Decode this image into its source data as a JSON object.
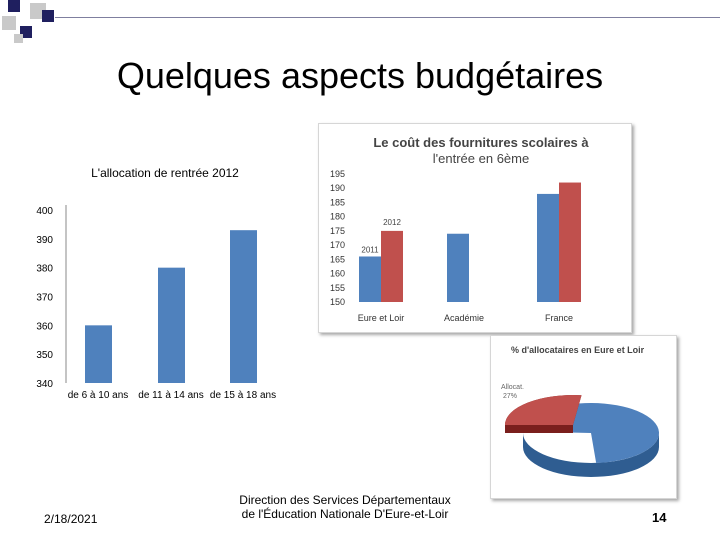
{
  "slide": {
    "title": "Quelques aspects budgétaires",
    "footer_date": "2/18/2021",
    "footer_center_line1": "Direction des Services Départementaux",
    "footer_center_line2": "de l'Éducation Nationale D'Eure-et-Loir",
    "page_number": "14"
  },
  "colors": {
    "bar_blue": "#4f81bd",
    "bar_red": "#c0504d",
    "deco_navy": "#1f1f5f",
    "deco_gray": "#c9c9c9"
  },
  "chart_data": [
    {
      "type": "bar",
      "title": "L'allocation de rentrée 2012",
      "categories": [
        "de 6 à 10 ans",
        "de 11 à 14 ans",
        "de 15 à 18 ans"
      ],
      "values": [
        360,
        380,
        393
      ],
      "ylim": [
        340,
        400
      ],
      "yticks": [
        "340",
        "350",
        "360",
        "370",
        "380",
        "390",
        "400"
      ],
      "grid": false,
      "legend": "none"
    },
    {
      "type": "bar",
      "title_line1": "Le coût des fournitures scolaires à",
      "title_line2": "l'entrée en 6ème",
      "categories": [
        "Eure et Loir",
        "Académie",
        "France"
      ],
      "series": [
        {
          "name": "2011",
          "values": [
            166,
            174,
            188
          ]
        },
        {
          "name": "2012",
          "values": [
            175,
            null,
            192
          ]
        }
      ],
      "ylim": [
        150,
        195
      ],
      "yticks": [
        "150",
        "155",
        "160",
        "165",
        "170",
        "175",
        "180",
        "185",
        "190",
        "195"
      ],
      "grid": false
    },
    {
      "type": "pie",
      "title": "% d'allocataires en Eure et Loir",
      "slices": [
        {
          "label": "Allocat.",
          "value": 27,
          "value_label": "27%"
        },
        {
          "label": "",
          "value": 73
        }
      ]
    }
  ]
}
